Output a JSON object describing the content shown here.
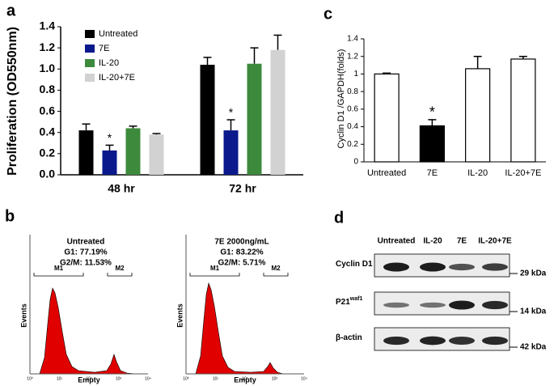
{
  "chart_data": [
    {
      "type": "bar",
      "label": "a",
      "y_label": "Proliferation (OD550nm)",
      "categories": [
        "48 hr",
        "72 hr"
      ],
      "series": [
        {
          "name": "Untreated",
          "color": "#000000",
          "values": [
            0.42,
            1.04
          ],
          "errors": [
            0.06,
            0.07
          ],
          "significance": [
            null,
            null
          ]
        },
        {
          "name": "7E",
          "color": "#0a1a8c",
          "values": [
            0.23,
            0.42
          ],
          "errors": [
            0.05,
            0.1
          ],
          "significance": [
            "*",
            "*"
          ]
        },
        {
          "name": "IL-20",
          "color": "#3d8a3d",
          "values": [
            0.44,
            1.05
          ],
          "errors": [
            0.02,
            0.15
          ],
          "significance": [
            null,
            null
          ]
        },
        {
          "name": "IL-20+7E",
          "color": "#d2d2d2",
          "values": [
            0.38,
            1.18
          ],
          "errors": [
            0.01,
            0.14
          ],
          "significance": [
            null,
            null
          ]
        }
      ],
      "error_bars": "up",
      "ylim": [
        0,
        1.4
      ],
      "yticks": [
        {
          "value": 0,
          "label": "0.0"
        },
        {
          "value": 0.2,
          "label": "0.2"
        },
        {
          "value": 0.4,
          "label": "0.4"
        },
        {
          "value": 0.6,
          "label": "0.6"
        },
        {
          "value": 0.8,
          "label": "0.8"
        },
        {
          "value": 1,
          "label": "1.0"
        },
        {
          "value": 1.2,
          "label": "1.2"
        },
        {
          "value": 1.4,
          "label": "1.4"
        }
      ]
    },
    {
      "type": "bar",
      "label": "c",
      "y_label": "Cyclin D1 /GAPDH(folds)",
      "categories": [
        "Untreated",
        "7E",
        "IL-20",
        "IL-20+7E"
      ],
      "values": [
        1.0,
        0.41,
        1.06,
        1.17
      ],
      "errors": [
        0.01,
        0.07,
        0.14,
        0.03
      ],
      "colors": [
        "#ffffff",
        "#000000",
        "#ffffff",
        "#ffffff"
      ],
      "significance": [
        null,
        "*",
        null,
        null
      ],
      "error_bars": "both",
      "ylim": [
        0,
        1.4
      ],
      "yticks": [
        0,
        0.2,
        0.4,
        0.6,
        0.8,
        1,
        1.2,
        1.4
      ]
    }
  ],
  "flow_panel": {
    "label": "b",
    "y_label": "Events",
    "x_label": "Empty",
    "x_tick_labels": [
      "10⁰",
      "10¹",
      "10²",
      "10³",
      "10⁴"
    ],
    "plots": [
      {
        "title": "Untreated",
        "g1": "G1: 77.19%",
        "g2m": "G2/M: 11.53%",
        "gates": [
          "M1",
          "M2"
        ]
      },
      {
        "title": "7E 2000ng/mL",
        "g1": "G1: 83.22%",
        "g2m": "G2/M: 5.71%",
        "gates": [
          "M1",
          "M2"
        ]
      }
    ]
  },
  "blot_panel": {
    "label": "d",
    "lanes": [
      "Untreated",
      "IL-20",
      "7E",
      "IL-20+7E"
    ],
    "rows": [
      {
        "name": "Cyclin D1",
        "size": "29 kDa"
      },
      {
        "name": "P21",
        "superscript": "waf1",
        "size": "14 kDa"
      },
      {
        "name": "β-actin",
        "size": "42 kDa"
      }
    ]
  }
}
